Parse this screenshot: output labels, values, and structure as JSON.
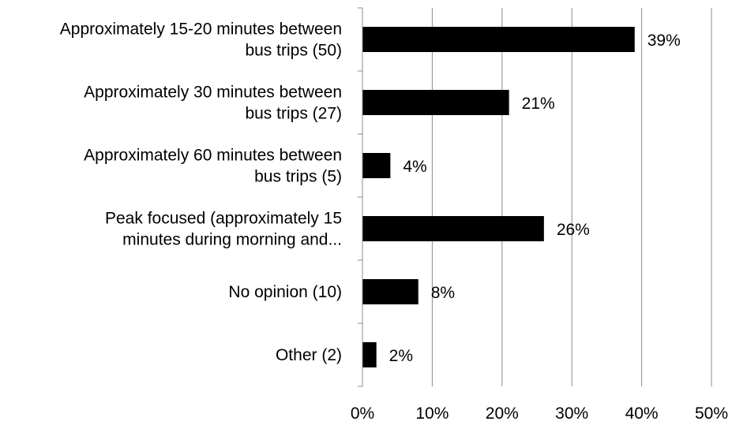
{
  "chart_data": {
    "type": "bar",
    "orientation": "horizontal",
    "categories": [
      [
        "Approximately 15-20 minutes between",
        "bus trips (50)"
      ],
      [
        "Approximately 30 minutes between",
        "bus trips (27)"
      ],
      [
        "Approximately 60 minutes between",
        "bus trips (5)"
      ],
      [
        "Peak focused (approximately 15",
        "minutes during morning and..."
      ],
      [
        "No opinion (10)"
      ],
      [
        "Other (2)"
      ]
    ],
    "values": [
      39,
      21,
      4,
      26,
      8,
      2
    ],
    "data_labels": [
      "39%",
      "21%",
      "4%",
      "26%",
      "8%",
      "2%"
    ],
    "xlim": [
      0,
      50
    ],
    "x_ticks": [
      0,
      10,
      20,
      30,
      40,
      50
    ],
    "x_tick_labels": [
      "0%",
      "10%",
      "20%",
      "30%",
      "40%",
      "50%"
    ],
    "grid": "vertical",
    "legend": "none",
    "colors": {
      "bar": "#000000",
      "grid": "#8c8c8c"
    }
  }
}
